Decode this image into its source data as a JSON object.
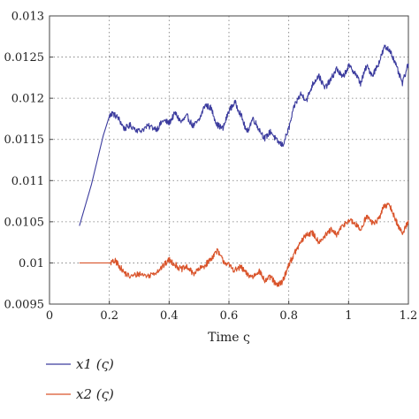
{
  "chart_data": {
    "type": "line",
    "title": "",
    "xlabel": "Time ς",
    "ylabel": "",
    "xlim": [
      0,
      1.2
    ],
    "ylim": [
      0.0095,
      0.013
    ],
    "grid": true,
    "legend_placement": "below",
    "xticks": [
      "0",
      "0.2",
      "0.4",
      "0.6",
      "0.8",
      "1",
      "1.2"
    ],
    "yticks": [
      "0.0095",
      "0.01",
      "0.0105",
      "0.011",
      "0.0115",
      "0.012",
      "0.0125",
      "0.013"
    ],
    "series": [
      {
        "name": "x1 (ς)",
        "color": "#3c3c9e",
        "x": [
          0.1,
          0.14,
          0.18,
          0.2,
          0.21,
          0.23,
          0.25,
          0.27,
          0.3,
          0.33,
          0.36,
          0.38,
          0.4,
          0.42,
          0.44,
          0.46,
          0.48,
          0.5,
          0.52,
          0.54,
          0.56,
          0.58,
          0.6,
          0.62,
          0.64,
          0.66,
          0.68,
          0.7,
          0.72,
          0.74,
          0.76,
          0.78,
          0.8,
          0.82,
          0.84,
          0.86,
          0.88,
          0.9,
          0.92,
          0.94,
          0.96,
          0.98,
          1.0,
          1.02,
          1.04,
          1.06,
          1.08,
          1.1,
          1.12,
          1.14,
          1.16,
          1.18,
          1.2
        ],
        "y": [
          0.01045,
          0.01095,
          0.01155,
          0.01178,
          0.01182,
          0.01176,
          0.01163,
          0.01167,
          0.0116,
          0.01166,
          0.01163,
          0.01173,
          0.0117,
          0.01182,
          0.01171,
          0.01178,
          0.01166,
          0.01173,
          0.01192,
          0.01188,
          0.01168,
          0.01163,
          0.01185,
          0.01195,
          0.0118,
          0.01158,
          0.01176,
          0.01163,
          0.01151,
          0.0116,
          0.01148,
          0.01143,
          0.01163,
          0.01192,
          0.01205,
          0.01198,
          0.01217,
          0.01228,
          0.01212,
          0.01222,
          0.01236,
          0.01225,
          0.01239,
          0.01232,
          0.01218,
          0.01239,
          0.01228,
          0.01242,
          0.01262,
          0.01258,
          0.01238,
          0.01218,
          0.01242
        ]
      },
      {
        "name": "x2 (ς)",
        "color": "#d9532a",
        "x": [
          0.1,
          0.14,
          0.18,
          0.2,
          0.22,
          0.23,
          0.25,
          0.27,
          0.3,
          0.33,
          0.36,
          0.38,
          0.4,
          0.42,
          0.44,
          0.46,
          0.48,
          0.5,
          0.52,
          0.54,
          0.56,
          0.58,
          0.6,
          0.62,
          0.64,
          0.66,
          0.68,
          0.7,
          0.72,
          0.74,
          0.76,
          0.78,
          0.8,
          0.82,
          0.84,
          0.86,
          0.88,
          0.9,
          0.92,
          0.94,
          0.96,
          0.98,
          1.0,
          1.02,
          1.04,
          1.06,
          1.08,
          1.1,
          1.12,
          1.14,
          1.16,
          1.18,
          1.2
        ],
        "y": [
          0.01,
          0.01,
          0.01,
          0.01,
          0.01002,
          0.00998,
          0.00988,
          0.00983,
          0.00987,
          0.00984,
          0.0099,
          0.00996,
          0.01004,
          0.00998,
          0.00992,
          0.00995,
          0.00987,
          0.00992,
          0.00997,
          0.01005,
          0.01015,
          0.01003,
          0.00997,
          0.00991,
          0.00995,
          0.00986,
          0.00983,
          0.00991,
          0.00978,
          0.00983,
          0.00972,
          0.00978,
          0.00998,
          0.01012,
          0.01025,
          0.01035,
          0.01036,
          0.01026,
          0.01032,
          0.0104,
          0.01034,
          0.01045,
          0.01052,
          0.01048,
          0.0104,
          0.01057,
          0.01048,
          0.01052,
          0.01071,
          0.01068,
          0.0105,
          0.01035,
          0.01052
        ]
      }
    ]
  }
}
